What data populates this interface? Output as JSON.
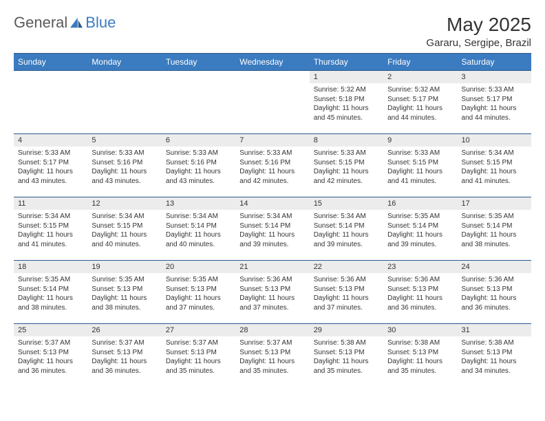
{
  "logo": {
    "text1": "General",
    "text2": "Blue"
  },
  "title": "May 2025",
  "location": "Gararu, Sergipe, Brazil",
  "colors": {
    "header_bg": "#3b7bbf",
    "header_text": "#ffffff",
    "daynum_bg": "#ececec",
    "border": "#2a5a8a",
    "text": "#333333",
    "logo_gray": "#5a5a5a",
    "logo_blue": "#3b7bbf",
    "page_bg": "#ffffff"
  },
  "typography": {
    "title_fontsize": 28,
    "location_fontsize": 15,
    "dayheader_fontsize": 12,
    "daynum_fontsize": 11,
    "body_fontsize": 10
  },
  "day_headers": [
    "Sunday",
    "Monday",
    "Tuesday",
    "Wednesday",
    "Thursday",
    "Friday",
    "Saturday"
  ],
  "weeks": [
    [
      {
        "empty": true
      },
      {
        "empty": true
      },
      {
        "empty": true
      },
      {
        "empty": true
      },
      {
        "day": "1",
        "sunrise": "5:32 AM",
        "sunset": "5:18 PM",
        "daylight_h": "11",
        "daylight_m": "45"
      },
      {
        "day": "2",
        "sunrise": "5:32 AM",
        "sunset": "5:17 PM",
        "daylight_h": "11",
        "daylight_m": "44"
      },
      {
        "day": "3",
        "sunrise": "5:33 AM",
        "sunset": "5:17 PM",
        "daylight_h": "11",
        "daylight_m": "44"
      }
    ],
    [
      {
        "day": "4",
        "sunrise": "5:33 AM",
        "sunset": "5:17 PM",
        "daylight_h": "11",
        "daylight_m": "43"
      },
      {
        "day": "5",
        "sunrise": "5:33 AM",
        "sunset": "5:16 PM",
        "daylight_h": "11",
        "daylight_m": "43"
      },
      {
        "day": "6",
        "sunrise": "5:33 AM",
        "sunset": "5:16 PM",
        "daylight_h": "11",
        "daylight_m": "43"
      },
      {
        "day": "7",
        "sunrise": "5:33 AM",
        "sunset": "5:16 PM",
        "daylight_h": "11",
        "daylight_m": "42"
      },
      {
        "day": "8",
        "sunrise": "5:33 AM",
        "sunset": "5:15 PM",
        "daylight_h": "11",
        "daylight_m": "42"
      },
      {
        "day": "9",
        "sunrise": "5:33 AM",
        "sunset": "5:15 PM",
        "daylight_h": "11",
        "daylight_m": "41"
      },
      {
        "day": "10",
        "sunrise": "5:34 AM",
        "sunset": "5:15 PM",
        "daylight_h": "11",
        "daylight_m": "41"
      }
    ],
    [
      {
        "day": "11",
        "sunrise": "5:34 AM",
        "sunset": "5:15 PM",
        "daylight_h": "11",
        "daylight_m": "41"
      },
      {
        "day": "12",
        "sunrise": "5:34 AM",
        "sunset": "5:15 PM",
        "daylight_h": "11",
        "daylight_m": "40"
      },
      {
        "day": "13",
        "sunrise": "5:34 AM",
        "sunset": "5:14 PM",
        "daylight_h": "11",
        "daylight_m": "40"
      },
      {
        "day": "14",
        "sunrise": "5:34 AM",
        "sunset": "5:14 PM",
        "daylight_h": "11",
        "daylight_m": "39"
      },
      {
        "day": "15",
        "sunrise": "5:34 AM",
        "sunset": "5:14 PM",
        "daylight_h": "11",
        "daylight_m": "39"
      },
      {
        "day": "16",
        "sunrise": "5:35 AM",
        "sunset": "5:14 PM",
        "daylight_h": "11",
        "daylight_m": "39"
      },
      {
        "day": "17",
        "sunrise": "5:35 AM",
        "sunset": "5:14 PM",
        "daylight_h": "11",
        "daylight_m": "38"
      }
    ],
    [
      {
        "day": "18",
        "sunrise": "5:35 AM",
        "sunset": "5:14 PM",
        "daylight_h": "11",
        "daylight_m": "38"
      },
      {
        "day": "19",
        "sunrise": "5:35 AM",
        "sunset": "5:13 PM",
        "daylight_h": "11",
        "daylight_m": "38"
      },
      {
        "day": "20",
        "sunrise": "5:35 AM",
        "sunset": "5:13 PM",
        "daylight_h": "11",
        "daylight_m": "37"
      },
      {
        "day": "21",
        "sunrise": "5:36 AM",
        "sunset": "5:13 PM",
        "daylight_h": "11",
        "daylight_m": "37"
      },
      {
        "day": "22",
        "sunrise": "5:36 AM",
        "sunset": "5:13 PM",
        "daylight_h": "11",
        "daylight_m": "37"
      },
      {
        "day": "23",
        "sunrise": "5:36 AM",
        "sunset": "5:13 PM",
        "daylight_h": "11",
        "daylight_m": "36"
      },
      {
        "day": "24",
        "sunrise": "5:36 AM",
        "sunset": "5:13 PM",
        "daylight_h": "11",
        "daylight_m": "36"
      }
    ],
    [
      {
        "day": "25",
        "sunrise": "5:37 AM",
        "sunset": "5:13 PM",
        "daylight_h": "11",
        "daylight_m": "36"
      },
      {
        "day": "26",
        "sunrise": "5:37 AM",
        "sunset": "5:13 PM",
        "daylight_h": "11",
        "daylight_m": "36"
      },
      {
        "day": "27",
        "sunrise": "5:37 AM",
        "sunset": "5:13 PM",
        "daylight_h": "11",
        "daylight_m": "35"
      },
      {
        "day": "28",
        "sunrise": "5:37 AM",
        "sunset": "5:13 PM",
        "daylight_h": "11",
        "daylight_m": "35"
      },
      {
        "day": "29",
        "sunrise": "5:38 AM",
        "sunset": "5:13 PM",
        "daylight_h": "11",
        "daylight_m": "35"
      },
      {
        "day": "30",
        "sunrise": "5:38 AM",
        "sunset": "5:13 PM",
        "daylight_h": "11",
        "daylight_m": "35"
      },
      {
        "day": "31",
        "sunrise": "5:38 AM",
        "sunset": "5:13 PM",
        "daylight_h": "11",
        "daylight_m": "34"
      }
    ]
  ],
  "labels": {
    "sunrise": "Sunrise:",
    "sunset": "Sunset:",
    "daylight_prefix": "Daylight:",
    "hours_word": "hours",
    "and_word": "and",
    "minutes_word": "minutes."
  }
}
